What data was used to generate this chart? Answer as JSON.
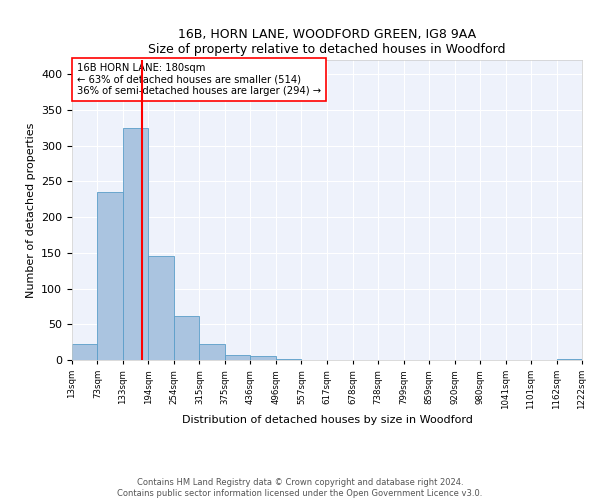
{
  "title": "16B, HORN LANE, WOODFORD GREEN, IG8 9AA",
  "subtitle": "Size of property relative to detached houses in Woodford",
  "xlabel": "Distribution of detached houses by size in Woodford",
  "ylabel": "Number of detached properties",
  "bin_edges": [
    13,
    73,
    133,
    194,
    254,
    315,
    375,
    436,
    496,
    557,
    617,
    678,
    738,
    799,
    859,
    920,
    980,
    1041,
    1101,
    1162,
    1222
  ],
  "counts": [
    22,
    235,
    325,
    145,
    62,
    22,
    7,
    5,
    1,
    0,
    0,
    0,
    0,
    0,
    0,
    0,
    0,
    0,
    0,
    1
  ],
  "property_size": 180,
  "bar_color": "#aac4e0",
  "bar_edge_color": "#5a9ec9",
  "line_color": "red",
  "annotation_text": "16B HORN LANE: 180sqm\n← 63% of detached houses are smaller (514)\n36% of semi-detached houses are larger (294) →",
  "annotation_box_color": "white",
  "annotation_box_edge": "red",
  "ylim": [
    0,
    420
  ],
  "yticks": [
    0,
    50,
    100,
    150,
    200,
    250,
    300,
    350,
    400
  ],
  "footer": "Contains HM Land Registry data © Crown copyright and database right 2024.\nContains public sector information licensed under the Open Government Licence v3.0.",
  "tick_labels": [
    "13sqm",
    "73sqm",
    "133sqm",
    "194sqm",
    "254sqm",
    "315sqm",
    "375sqm",
    "436sqm",
    "496sqm",
    "557sqm",
    "617sqm",
    "678sqm",
    "738sqm",
    "799sqm",
    "859sqm",
    "920sqm",
    "980sqm",
    "1041sqm",
    "1101sqm",
    "1162sqm",
    "1222sqm"
  ],
  "bg_color": "#eef2fb"
}
